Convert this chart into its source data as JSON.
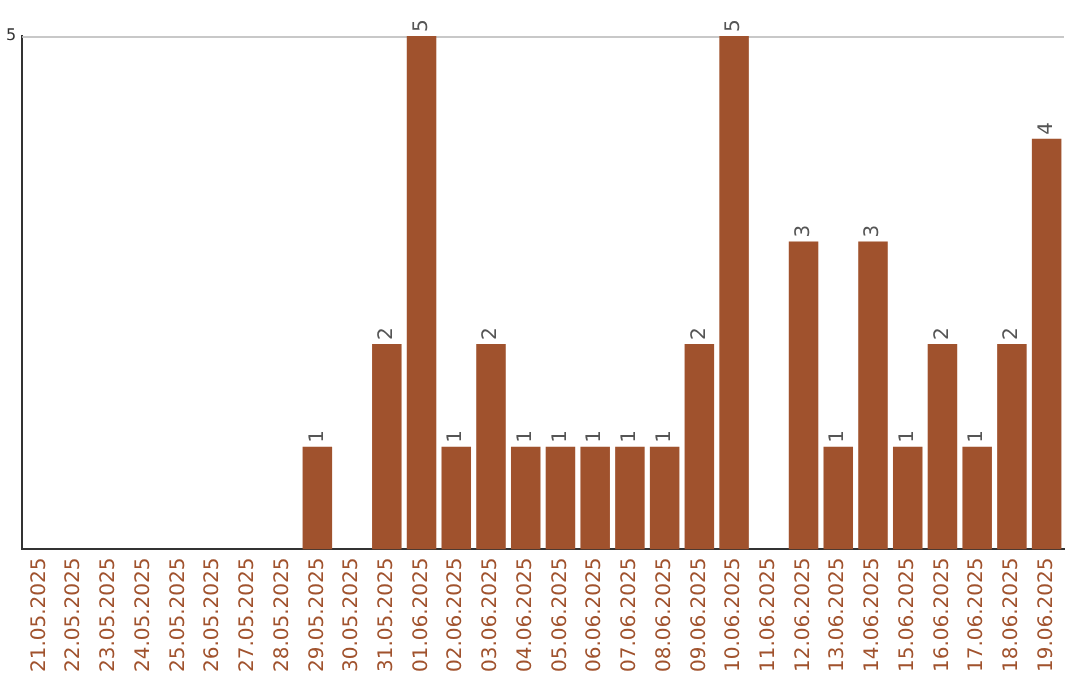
{
  "chart_data": {
    "type": "bar",
    "categories": [
      "21.05.2025",
      "22.05.2025",
      "23.05.2025",
      "24.05.2025",
      "25.05.2025",
      "26.05.2025",
      "27.05.2025",
      "28.05.2025",
      "29.05.2025",
      "30.05.2025",
      "31.05.2025",
      "01.06.2025",
      "02.06.2025",
      "03.06.2025",
      "04.06.2025",
      "05.06.2025",
      "06.06.2025",
      "07.06.2025",
      "08.06.2025",
      "09.06.2025",
      "10.06.2025",
      "11.06.2025",
      "12.06.2025",
      "13.06.2025",
      "14.06.2025",
      "15.06.2025",
      "16.06.2025",
      "17.06.2025",
      "18.06.2025",
      "19.06.2025"
    ],
    "values": [
      0,
      0,
      0,
      0,
      0,
      0,
      0,
      0,
      1,
      0,
      2,
      5,
      1,
      2,
      1,
      1,
      1,
      1,
      1,
      2,
      5,
      0,
      3,
      1,
      3,
      1,
      2,
      1,
      2,
      4
    ],
    "value_labels": [
      null,
      null,
      null,
      null,
      null,
      null,
      null,
      null,
      "1",
      null,
      "2",
      "5",
      "1",
      "2",
      "1",
      "1",
      "1",
      "1",
      "1",
      "2",
      "5",
      null,
      "3",
      "1",
      "3",
      "1",
      "2",
      "1",
      "2",
      "4"
    ],
    "color": "#a0522d",
    "ylim": [
      0,
      5
    ],
    "yticks": [
      5
    ]
  }
}
